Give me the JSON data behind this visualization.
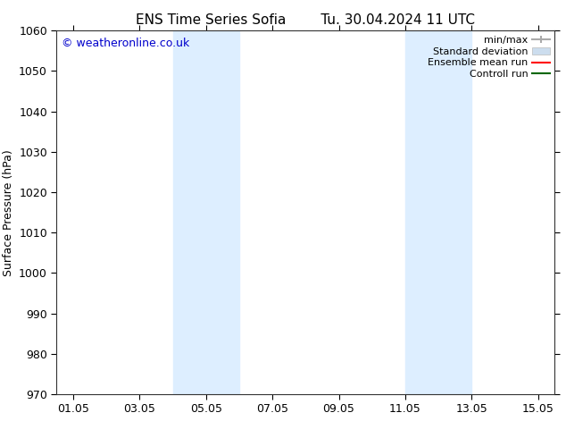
{
  "title_left": "ENS Time Series Sofia",
  "title_right": "Tu. 30.04.2024 11 UTC",
  "ylabel": "Surface Pressure (hPa)",
  "ylim": [
    970,
    1060
  ],
  "yticks": [
    970,
    980,
    990,
    1000,
    1010,
    1020,
    1030,
    1040,
    1050,
    1060
  ],
  "xlim": [
    0.0,
    15.0
  ],
  "xtick_labels": [
    "01.05",
    "03.05",
    "05.05",
    "07.05",
    "09.05",
    "11.05",
    "13.05",
    "15.05"
  ],
  "xtick_positions": [
    0.5,
    2.5,
    4.5,
    6.5,
    8.5,
    10.5,
    12.5,
    14.5
  ],
  "shaded_bands": [
    {
      "x_start": 3.5,
      "x_end": 5.5
    },
    {
      "x_start": 10.5,
      "x_end": 12.5
    }
  ],
  "watermark": "© weatheronline.co.uk",
  "watermark_color": "#0000cc",
  "background_color": "#ffffff",
  "plot_bg_color": "#ffffff",
  "band_color": "#ddeeff",
  "legend_items": [
    {
      "label": "min/max",
      "color": "#aaaaaa",
      "lw": 1.5,
      "style": "solid",
      "type": "line_with_caps"
    },
    {
      "label": "Standard deviation",
      "color": "#ccddee",
      "lw": 6,
      "style": "solid",
      "type": "patch"
    },
    {
      "label": "Ensemble mean run",
      "color": "#ff0000",
      "lw": 1.5,
      "style": "solid",
      "type": "line"
    },
    {
      "label": "Controll run",
      "color": "#006600",
      "lw": 1.5,
      "style": "solid",
      "type": "line"
    }
  ],
  "title_fontsize": 11,
  "axis_fontsize": 9,
  "tick_fontsize": 9,
  "legend_fontsize": 8
}
